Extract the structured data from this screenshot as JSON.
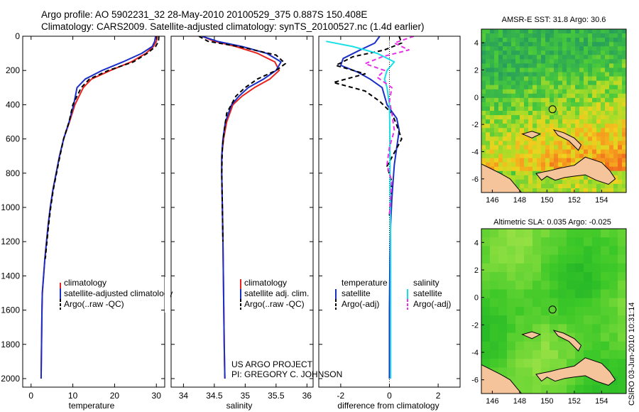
{
  "header": {
    "line1": "Argo profile: AO 5902231_32 28-May-2010 20100529_375 0.887S 150.408E",
    "line2": "Climatology: CARS2009. Satellite-adjusted climatology: synTS_20100527.nc (1.4d earlier)"
  },
  "colors": {
    "climatology": "#e8231d",
    "satellite": "#1a2ec8",
    "argo": "#000000",
    "satellite_sal": "#19e0e8",
    "argo_sal": "#e832e8",
    "land": "#f5c49a"
  },
  "chart_data": [
    {
      "type": "line",
      "xlabel": "temperature",
      "ylabel": "",
      "xlim": [
        -2,
        32
      ],
      "ylim": [
        0,
        2050
      ],
      "y_inverted": true,
      "xticks": [
        0,
        10,
        20,
        30
      ],
      "yticks": [
        0,
        200,
        400,
        600,
        800,
        1000,
        1200,
        1400,
        1600,
        1800,
        2000
      ],
      "legend": {
        "placement": "bottom-right",
        "entries": [
          "climatology",
          "satellite-adjusted climatology",
          "Argo(..raw -QC)"
        ]
      },
      "series": [
        {
          "name": "climatology",
          "style": "solid",
          "color": "#e8231d",
          "x": [
            30.2,
            30.0,
            29.3,
            27.5,
            24.0,
            19.0,
            14.5,
            12.5,
            10.5,
            9.2,
            7.8,
            6.8,
            6.0,
            5.2,
            4.6,
            4.1,
            3.7,
            3.3,
            3.0,
            2.7,
            2.6,
            2.5,
            2.4
          ],
          "y": [
            0,
            30,
            60,
            100,
            150,
            200,
            250,
            300,
            400,
            500,
            600,
            700,
            800,
            900,
            1000,
            1100,
            1200,
            1300,
            1400,
            1500,
            1600,
            1800,
            2000
          ]
        },
        {
          "name": "satellite-adjusted climatology",
          "style": "solid",
          "color": "#1a2ec8",
          "x": [
            29.8,
            29.6,
            29.0,
            26.5,
            22.0,
            17.0,
            13.0,
            11.0,
            10.2,
            9.1,
            7.8,
            6.8,
            6.0,
            5.2,
            4.6,
            4.1,
            3.7,
            3.3,
            3.0,
            2.7,
            2.6,
            2.5,
            2.4
          ],
          "y": [
            0,
            30,
            60,
            100,
            150,
            200,
            250,
            300,
            400,
            500,
            600,
            700,
            800,
            900,
            1000,
            1100,
            1200,
            1300,
            1400,
            1500,
            1600,
            1800,
            2000
          ]
        },
        {
          "name": "Argo(..raw -QC)",
          "style": "dashed",
          "color": "#000000",
          "x": [
            30.6,
            30.5,
            29.8,
            27.8,
            24.5,
            18.5,
            14.0,
            12.0,
            10.0,
            9.1,
            7.8,
            6.9,
            6.1,
            5.3,
            4.7,
            4.2,
            3.8,
            3.4
          ],
          "y": [
            0,
            30,
            60,
            100,
            150,
            200,
            250,
            300,
            400,
            500,
            600,
            700,
            800,
            900,
            1000,
            1100,
            1200,
            1300
          ]
        }
      ]
    },
    {
      "type": "line",
      "xlabel": "salinity",
      "ylabel": "",
      "xlim": [
        33.8,
        36.1
      ],
      "ylim": [
        0,
        2050
      ],
      "y_inverted": true,
      "xticks": [
        34,
        34.5,
        35,
        35.5,
        36
      ],
      "legend": {
        "placement": "bottom-right",
        "entries": [
          "climatology",
          "satellite adj. clim.",
          "Argo(..raw -QC)"
        ]
      },
      "annotation": {
        "line1": "US ARGO PROJECT",
        "line2": "PI: GREGORY C. JOHNSON"
      },
      "series": [
        {
          "name": "climatology",
          "style": "solid",
          "color": "#e8231d",
          "x": [
            34.3,
            34.5,
            34.85,
            35.2,
            35.48,
            35.55,
            35.4,
            35.15,
            34.95,
            34.8,
            34.7,
            34.65,
            34.62,
            34.62,
            34.63,
            34.64,
            34.65,
            34.66,
            34.67
          ],
          "y": [
            0,
            30,
            60,
            100,
            150,
            200,
            250,
            300,
            350,
            400,
            500,
            600,
            700,
            800,
            1000,
            1200,
            1500,
            1800,
            2000
          ]
        },
        {
          "name": "satellite adj. clim.",
          "style": "solid",
          "color": "#1a2ec8",
          "x": [
            34.3,
            34.55,
            34.95,
            35.35,
            35.58,
            35.5,
            35.3,
            35.05,
            34.9,
            34.78,
            34.68,
            34.64,
            34.62,
            34.62,
            34.63,
            34.64,
            34.65,
            34.66,
            34.67
          ],
          "y": [
            0,
            30,
            60,
            100,
            150,
            200,
            250,
            300,
            350,
            400,
            500,
            600,
            700,
            800,
            1000,
            1200,
            1500,
            1800,
            2000
          ]
        },
        {
          "name": "Argo(..raw -QC)",
          "style": "dashed",
          "color": "#000000",
          "x": [
            34.25,
            34.4,
            34.9,
            35.5,
            35.65,
            35.5,
            35.2,
            35.0,
            34.85,
            34.7,
            34.66,
            34.63,
            34.62,
            34.63,
            34.64
          ],
          "y": [
            0,
            30,
            60,
            110,
            160,
            200,
            250,
            300,
            350,
            450,
            550,
            650,
            800,
            1000,
            1200
          ]
        }
      ]
    },
    {
      "type": "line",
      "xlabel": "difference from climatology",
      "ylabel": "",
      "xlim": [
        -2.9,
        2.9
      ],
      "ylim": [
        0,
        2050
      ],
      "y_inverted": true,
      "xticks": [
        -2,
        0,
        2
      ],
      "legend": {
        "placement": "bottom",
        "groups": [
          {
            "title": "temperature",
            "entries": [
              "satellite",
              "Argo(-adj)"
            ]
          },
          {
            "title": "salinity",
            "entries": [
              "satellite",
              "Argo(-adj)"
            ]
          }
        ]
      },
      "series": [
        {
          "name": "satellite",
          "group": "temperature",
          "style": "solid",
          "color": "#1a2ec8",
          "x": [
            -0.4,
            -0.6,
            -1.2,
            -1.9,
            -2.0,
            -1.3,
            -0.8,
            -0.3,
            -0.1,
            0.3,
            0.4,
            0.3,
            0.2,
            0.15,
            0.1,
            0.05,
            0.02,
            0.0,
            0.0
          ],
          "y": [
            0,
            40,
            80,
            130,
            170,
            210,
            250,
            300,
            400,
            480,
            550,
            650,
            750,
            850,
            950,
            1100,
            1300,
            1600,
            2000
          ]
        },
        {
          "name": "Argo(-adj)",
          "group": "temperature",
          "style": "dashed",
          "color": "#000000",
          "x": [
            0.4,
            0.5,
            -0.2,
            -1.5,
            -2.2,
            -1.0,
            -2.3,
            -1.0,
            -0.4,
            0.1,
            0.3,
            0.5,
            0.2,
            -0.1,
            0.1,
            0.05,
            0.0
          ],
          "y": [
            0,
            40,
            80,
            120,
            170,
            220,
            270,
            320,
            380,
            450,
            520,
            600,
            680,
            760,
            850,
            950,
            1050
          ]
        },
        {
          "name": "satellite",
          "group": "salinity",
          "style": "solid",
          "color": "#19e0e8",
          "x": [
            -2.6,
            -1.5,
            -0.5,
            0.2,
            -0.1,
            -0.2,
            -0.1,
            0.0,
            0.02,
            0.03,
            0.05,
            0.05,
            0.05
          ],
          "y": [
            30,
            60,
            100,
            150,
            200,
            250,
            300,
            400,
            600,
            900,
            1200,
            1600,
            2000
          ]
        },
        {
          "name": "Argo(-adj)",
          "group": "salinity",
          "style": "dashed",
          "color": "#e832e8",
          "x": [
            1.0,
            0.2,
            0.8,
            -0.3,
            -1.0,
            -0.2,
            -0.5,
            0.1,
            0.0,
            0.1,
            0.2,
            0.0,
            -0.1,
            0.1,
            0.05,
            0.0
          ],
          "y": [
            0,
            40,
            80,
            120,
            160,
            200,
            240,
            300,
            380,
            450,
            550,
            650,
            750,
            850,
            950,
            1050
          ]
        }
      ]
    },
    {
      "type": "heatmap",
      "title": "AMSR-E SST: 31.8 Argo: 30.6",
      "xlim": [
        145.2,
        155.8
      ],
      "ylim": [
        -7,
        5
      ],
      "xticks": [
        146,
        148,
        150,
        152,
        154
      ],
      "yticks": [
        4,
        2,
        0,
        -2,
        -4,
        -6
      ],
      "marker": {
        "lon": 150.408,
        "lat": -0.887
      }
    },
    {
      "type": "heatmap",
      "title": "Altimetric SLA: 0.035 Argo: -0.025",
      "xlim": [
        145.2,
        155.8
      ],
      "ylim": [
        -7,
        5
      ],
      "xticks": [
        146,
        148,
        150,
        152,
        154
      ],
      "yticks": [
        4,
        2,
        0,
        -2,
        -4,
        -6
      ],
      "marker": {
        "lon": 150.408,
        "lat": -0.887
      }
    }
  ],
  "footer_vertical": "CSIRO 03-Jun-2010 10:31:14"
}
